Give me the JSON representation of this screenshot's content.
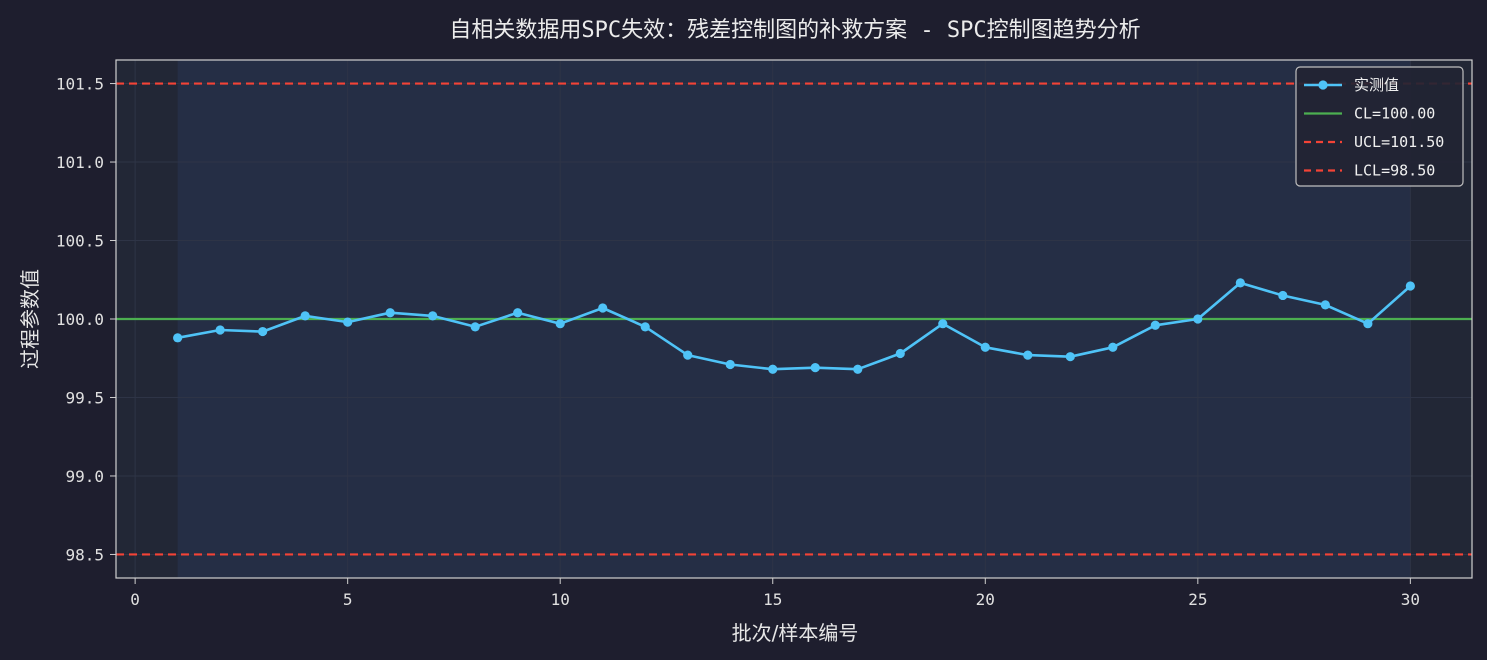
{
  "chart_data": {
    "type": "line",
    "title": "自相关数据用SPC失效：残差控制图的补救方案 - SPC控制图趋势分析",
    "xlabel": "批次/样本编号",
    "ylabel": "过程参数值",
    "xlim": [
      -0.45,
      31.45
    ],
    "ylim": [
      98.35,
      101.65
    ],
    "xticks": [
      0,
      5,
      10,
      15,
      20,
      25,
      30
    ],
    "xtick_labels": [
      "0",
      "5",
      "10",
      "15",
      "20",
      "25",
      "30"
    ],
    "yticks": [
      98.5,
      99.0,
      99.5,
      100.0,
      100.5,
      101.0,
      101.5
    ],
    "ytick_labels": [
      "98.5",
      "99.0",
      "99.5",
      "100.0",
      "100.5",
      "101.0",
      "101.5"
    ],
    "grid": true,
    "legend_position": "top-right",
    "shaded_range_x": [
      1,
      30
    ],
    "series": [
      {
        "name": "实测值",
        "color": "#4fc3f7",
        "x": [
          1,
          2,
          3,
          4,
          5,
          6,
          7,
          8,
          9,
          10,
          11,
          12,
          13,
          14,
          15,
          16,
          17,
          18,
          19,
          20,
          21,
          22,
          23,
          24,
          25,
          26,
          27,
          28,
          29,
          30
        ],
        "values": [
          99.88,
          99.93,
          99.92,
          100.02,
          99.98,
          100.04,
          100.02,
          99.95,
          100.04,
          99.97,
          100.07,
          99.95,
          99.77,
          99.71,
          99.68,
          99.69,
          99.68,
          99.78,
          99.97,
          99.82,
          99.77,
          99.76,
          99.82,
          99.96,
          100.0,
          100.23,
          100.15,
          100.09,
          99.97,
          100.21
        ]
      }
    ],
    "reference_lines": [
      {
        "name": "CL=100.00",
        "value": 100.0,
        "color": "#4caf50",
        "style": "solid"
      },
      {
        "name": "UCL=101.50",
        "value": 101.5,
        "color": "#f44336",
        "style": "dashed"
      },
      {
        "name": "LCL=98.50",
        "value": 98.5,
        "color": "#f44336",
        "style": "dashed"
      }
    ]
  },
  "colors": {
    "background": "#1e1e2e",
    "plot_background": "#222736",
    "shaded_band": "#252e45",
    "axis": "#d0d0d0",
    "grid": "#2e3446",
    "text": "#e0e0e0",
    "legend_background": "#222433",
    "legend_border": "#bfbfbf"
  }
}
